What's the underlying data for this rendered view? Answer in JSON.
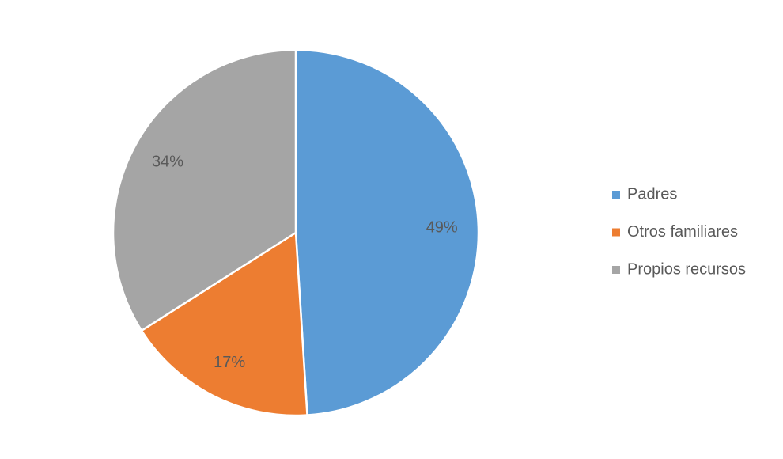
{
  "chart_data": {
    "type": "pie",
    "categories": [
      "Padres",
      "Otros familiares",
      "Propios recursos"
    ],
    "values": [
      49,
      17,
      34
    ],
    "value_labels": [
      "49%",
      "17%",
      "34%"
    ],
    "colors": [
      "#5b9bd5",
      "#ed7d31",
      "#a5a5a5"
    ],
    "legend": "right"
  }
}
